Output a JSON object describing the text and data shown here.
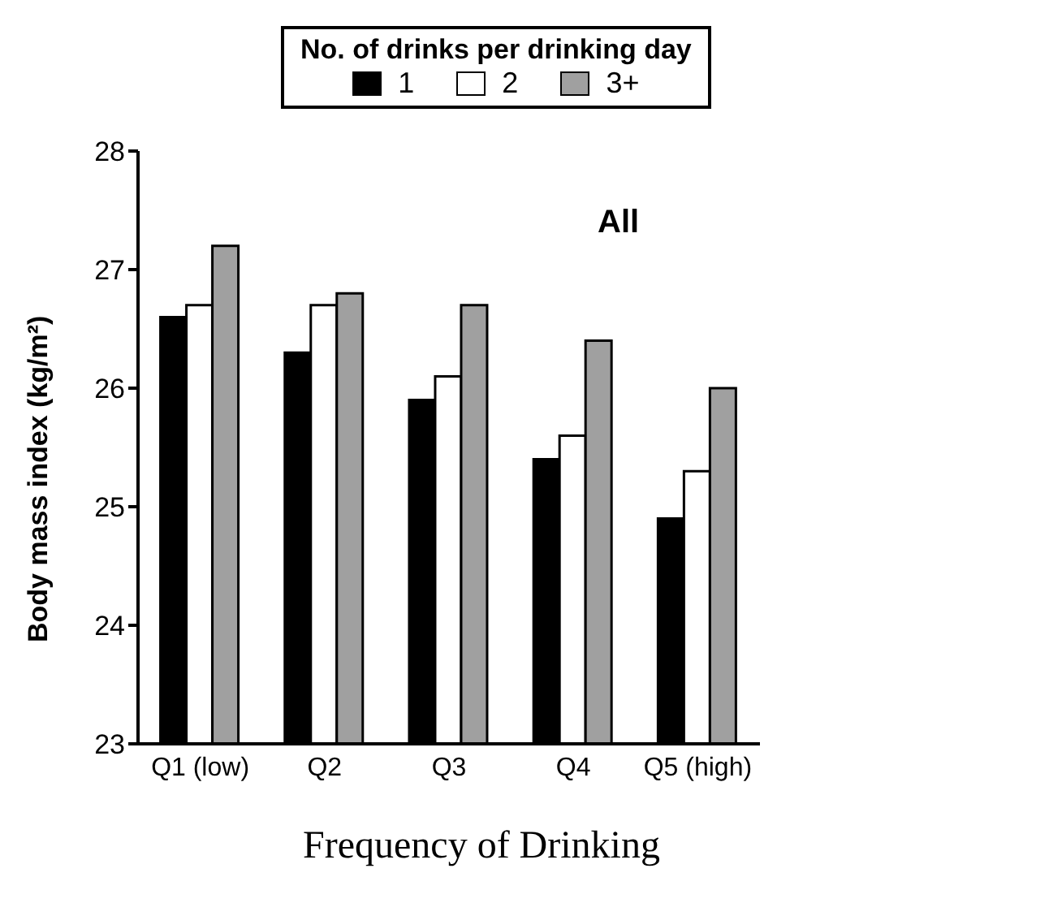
{
  "chart_data": {
    "type": "bar",
    "title": "All",
    "xlabel": "Frequency of Drinking",
    "ylabel": "Body mass index (kg/m²)",
    "legend_title": "No. of drinks per drinking day",
    "legend": "top",
    "grid": false,
    "categories": [
      "Q1 (low)",
      "Q2",
      "Q3",
      "Q4",
      "Q5 (high)"
    ],
    "ylim": [
      23,
      28
    ],
    "yticks": [
      23,
      24,
      25,
      26,
      27,
      28
    ],
    "series": [
      {
        "name": "1",
        "color": "#000000",
        "values": [
          26.6,
          26.3,
          25.9,
          25.4,
          24.9
        ]
      },
      {
        "name": "2",
        "color": "#ffffff",
        "values": [
          26.7,
          26.7,
          26.1,
          25.6,
          25.3
        ]
      },
      {
        "name": "3+",
        "color": "#a0a0a0",
        "values": [
          27.2,
          26.8,
          26.7,
          26.4,
          26.0
        ]
      }
    ]
  }
}
